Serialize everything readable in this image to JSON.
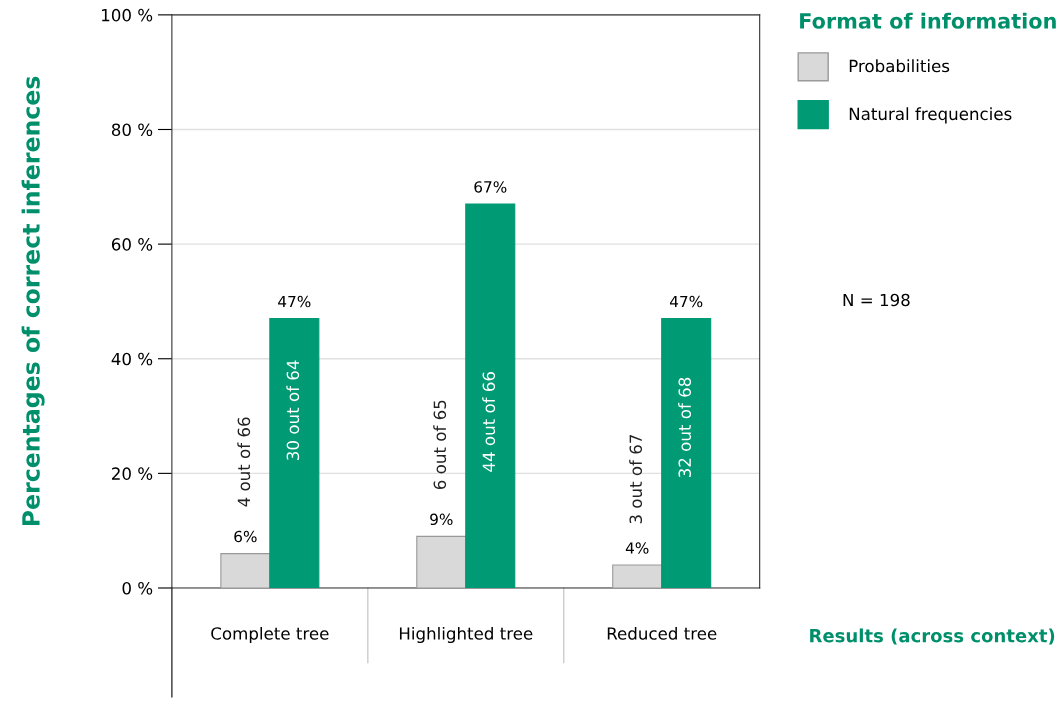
{
  "chart_data": {
    "type": "bar",
    "categories": [
      "Complete tree",
      "Highlighted tree",
      "Reduced tree"
    ],
    "series": [
      {
        "name": "Probabilities",
        "color": "#d9d9d9",
        "values": [
          6,
          9,
          4
        ],
        "value_labels": [
          "6%",
          "9%",
          "4%"
        ]
      },
      {
        "name": "Natural frequencies",
        "color": "#009a74",
        "values": [
          47,
          67,
          47
        ],
        "value_labels": [
          "47%",
          "67%",
          "47%"
        ]
      }
    ],
    "ylabel": "Percentages of correct inferences",
    "legend_title": "Format of information",
    "legend": "top right",
    "ylim": [
      0,
      100
    ],
    "yticks": [
      {
        "value": 0,
        "label": "0 %"
      },
      {
        "value": 20,
        "label": "20 %"
      },
      {
        "value": 40,
        "label": "40 %"
      },
      {
        "value": 60,
        "label": "60 %"
      },
      {
        "value": 80,
        "label": "80 %"
      },
      {
        "value": 100,
        "label": "100 %"
      }
    ],
    "grid": "y",
    "annotations": [
      {
        "text": "4 out of 66",
        "x": "Complete tree",
        "y": 22
      },
      {
        "text": "30 out of 64",
        "x": "Complete tree",
        "y": 31
      },
      {
        "text": "6 out of 65",
        "x": "Highlighted tree",
        "y": 25
      },
      {
        "text": "44 out of 66",
        "x": "Highlighted tree",
        "y": 29
      },
      {
        "text": "3 out of 67",
        "x": "Reduced tree",
        "y": 19
      },
      {
        "text": "32 out of 68",
        "x": "Reduced tree",
        "y": 28
      },
      "N = 198",
      "Results (across context)"
    ]
  }
}
